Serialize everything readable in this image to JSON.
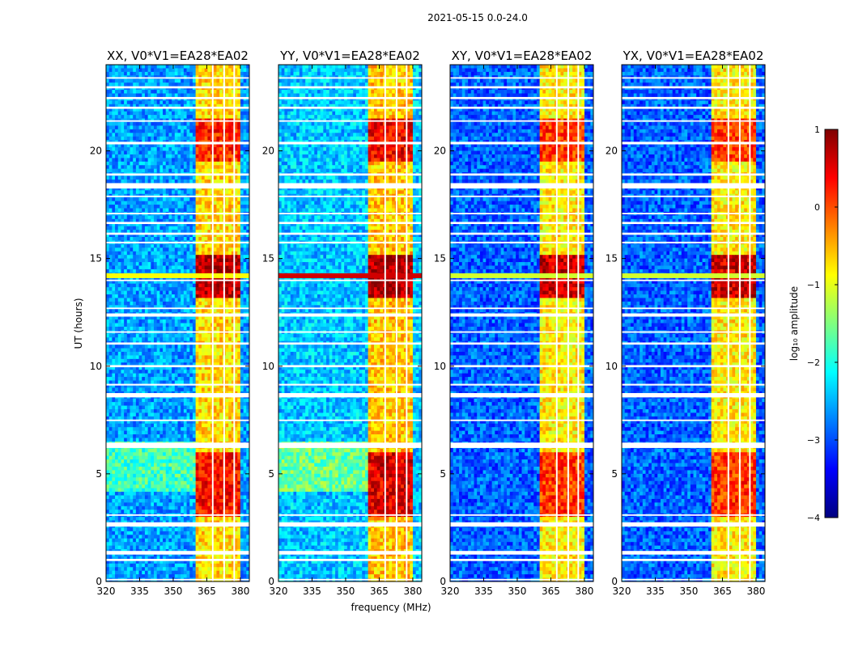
{
  "figure": {
    "suptitle": "2021-05-15 0.0-24.0"
  },
  "chart_data": {
    "type": "heatmap",
    "title": "2021-05-15 0.0-24.0",
    "xlabel": "frequency (MHz)",
    "ylabel": "UT (hours)",
    "xlim": [
      320,
      384
    ],
    "ylim": [
      0,
      24
    ],
    "xticks": [
      320,
      335,
      350,
      365,
      380
    ],
    "yticks": [
      0,
      5,
      10,
      15,
      20
    ],
    "colormap": "jet",
    "colorbar": {
      "label": "log₁₀ amplitude",
      "min": -4,
      "max": 1,
      "ticks": [
        1,
        0,
        -1,
        -2,
        -3,
        -4
      ]
    },
    "flagged_color": "#ffffff",
    "panels": [
      {
        "title": "XX, V0*V1=EA28*EA02",
        "polarization": "XX",
        "background_level": -2.6,
        "features": [
          {
            "type": "band",
            "f_start": 360,
            "f_end": 380,
            "t_start": 0,
            "t_end": 24,
            "level": -0.7
          },
          {
            "type": "region",
            "f_start": 320,
            "f_end": 360,
            "t_start": 4.1,
            "t_end": 6.5,
            "level": -1.8
          },
          {
            "type": "region",
            "f_start": 360,
            "f_end": 380,
            "t_start": 3.0,
            "t_end": 6.0,
            "level": 0.3
          },
          {
            "type": "region",
            "f_start": 360,
            "f_end": 380,
            "t_start": 13.2,
            "t_end": 15.2,
            "level": 0.7
          },
          {
            "type": "line",
            "f_start": 320,
            "f_end": 384,
            "t": 14.2,
            "level": -0.9
          },
          {
            "type": "region",
            "f_start": 360,
            "f_end": 380,
            "t_start": 19.5,
            "t_end": 21.5,
            "level": 0.2
          }
        ]
      },
      {
        "title": "YY, V0*V1=EA28*EA02",
        "polarization": "YY",
        "background_level": -2.4,
        "features": [
          {
            "type": "band",
            "f_start": 360,
            "f_end": 380,
            "t_start": 0,
            "t_end": 24,
            "level": -0.6
          },
          {
            "type": "region",
            "f_start": 320,
            "f_end": 360,
            "t_start": 4.1,
            "t_end": 6.5,
            "level": -1.6
          },
          {
            "type": "region",
            "f_start": 360,
            "f_end": 380,
            "t_start": 3.0,
            "t_end": 6.0,
            "level": 0.5
          },
          {
            "type": "region",
            "f_start": 360,
            "f_end": 380,
            "t_start": 13.2,
            "t_end": 15.2,
            "level": 0.8
          },
          {
            "type": "line",
            "f_start": 320,
            "f_end": 384,
            "t": 14.2,
            "level": 0.6
          },
          {
            "type": "region",
            "f_start": 360,
            "f_end": 380,
            "t_start": 19.5,
            "t_end": 21.5,
            "level": 0.4
          }
        ]
      },
      {
        "title": "XY, V0*V1=EA28*EA02",
        "polarization": "XY",
        "background_level": -2.9,
        "features": [
          {
            "type": "band",
            "f_start": 360,
            "f_end": 380,
            "t_start": 0,
            "t_end": 24,
            "level": -0.8
          },
          {
            "type": "region",
            "f_start": 360,
            "f_end": 380,
            "t_start": 3.0,
            "t_end": 6.0,
            "level": 0.1
          },
          {
            "type": "region",
            "f_start": 360,
            "f_end": 380,
            "t_start": 13.2,
            "t_end": 15.2,
            "level": 0.6
          },
          {
            "type": "line",
            "f_start": 320,
            "f_end": 384,
            "t": 14.2,
            "level": -1.1
          },
          {
            "type": "region",
            "f_start": 360,
            "f_end": 380,
            "t_start": 19.5,
            "t_end": 21.5,
            "level": 0.1
          }
        ]
      },
      {
        "title": "YX, V0*V1=EA28*EA02",
        "polarization": "YX",
        "background_level": -2.9,
        "features": [
          {
            "type": "band",
            "f_start": 360,
            "f_end": 380,
            "t_start": 0,
            "t_end": 24,
            "level": -0.8
          },
          {
            "type": "region",
            "f_start": 360,
            "f_end": 380,
            "t_start": 3.0,
            "t_end": 6.0,
            "level": 0.1
          },
          {
            "type": "region",
            "f_start": 360,
            "f_end": 380,
            "t_start": 13.2,
            "t_end": 15.2,
            "level": 0.6
          },
          {
            "type": "line",
            "f_start": 320,
            "f_end": 384,
            "t": 14.2,
            "level": -1.1
          },
          {
            "type": "region",
            "f_start": 360,
            "f_end": 380,
            "t_start": 19.5,
            "t_end": 21.5,
            "level": 0.1
          }
        ]
      }
    ],
    "flagged_time_ranges": [
      [
        0.05,
        0.12
      ],
      [
        0.95,
        1.05
      ],
      [
        1.25,
        1.42
      ],
      [
        2.55,
        2.75
      ],
      [
        3.05,
        3.12
      ],
      [
        6.2,
        6.45
      ],
      [
        7.45,
        7.52
      ],
      [
        8.55,
        8.75
      ],
      [
        9.1,
        9.18
      ],
      [
        9.95,
        10.05
      ],
      [
        11.0,
        11.1
      ],
      [
        11.55,
        11.62
      ],
      [
        12.3,
        12.45
      ],
      [
        12.65,
        12.72
      ],
      [
        13.95,
        14.02
      ],
      [
        15.7,
        15.78
      ],
      [
        16.1,
        16.2
      ],
      [
        16.6,
        16.7
      ],
      [
        17.05,
        17.12
      ],
      [
        17.85,
        17.92
      ],
      [
        18.25,
        18.5
      ],
      [
        18.85,
        18.95
      ],
      [
        20.3,
        20.42
      ],
      [
        21.35,
        21.42
      ],
      [
        21.95,
        22.05
      ],
      [
        22.4,
        22.5
      ],
      [
        22.9,
        23.0
      ],
      [
        23.35,
        23.42
      ]
    ],
    "flagged_channel_ranges": [
      [
        367.3,
        368.0
      ],
      [
        372.4,
        373.1
      ],
      [
        376.9,
        377.6
      ]
    ]
  }
}
